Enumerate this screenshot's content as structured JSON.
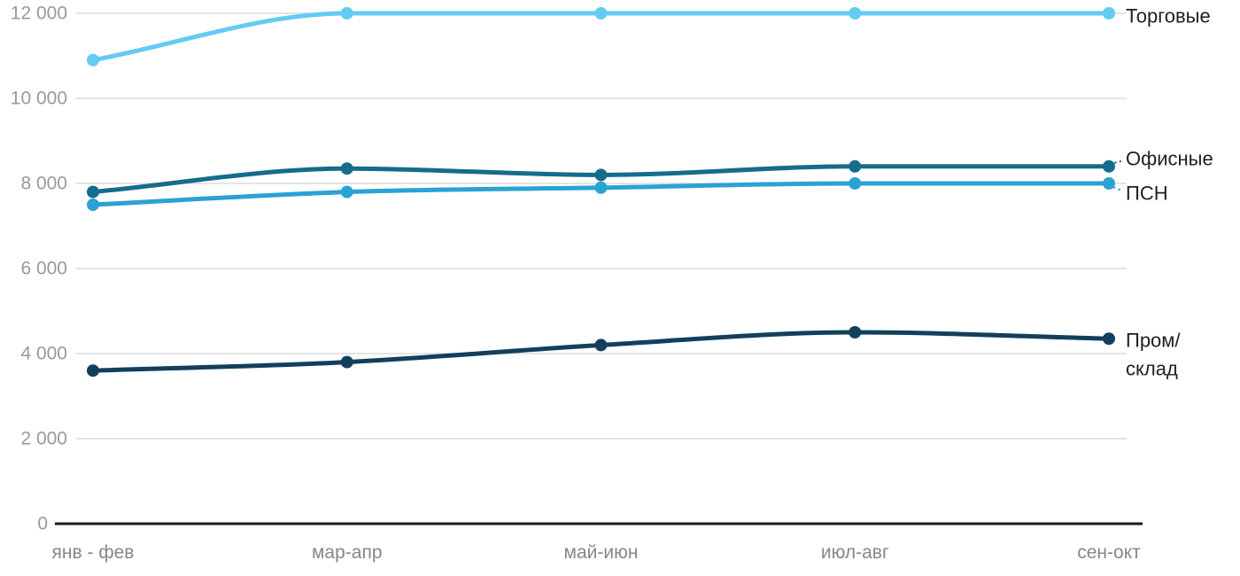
{
  "chart_data": {
    "type": "line",
    "title": "",
    "xlabel": "",
    "ylabel": "",
    "categories": [
      "янв - фев",
      "мар-апр",
      "май-июн",
      "июл-авг",
      "сен-окт"
    ],
    "ylim": [
      0,
      12000
    ],
    "y_ticks": [
      {
        "value": 0,
        "label": "0"
      },
      {
        "value": 2000,
        "label": "2 000"
      },
      {
        "value": 4000,
        "label": "4 000"
      },
      {
        "value": 6000,
        "label": "6 000"
      },
      {
        "value": 8000,
        "label": "8 000"
      },
      {
        "value": 10000,
        "label": "10 000"
      },
      {
        "value": 12000,
        "label": "12 000"
      }
    ],
    "grid": "horizontal",
    "legend_position": "direct-labels-right",
    "series": [
      {
        "name": "Торговые",
        "label_lines": [
          "Торговые"
        ],
        "color": "#63CBF4",
        "values": [
          10900,
          12000,
          12000,
          12000,
          12000
        ]
      },
      {
        "name": "Офисные",
        "label_lines": [
          "Офисные"
        ],
        "color": "#156C8C",
        "values": [
          7800,
          8350,
          8200,
          8400,
          8400
        ]
      },
      {
        "name": "ПСН",
        "label_lines": [
          "ПСН"
        ],
        "color": "#29A3D3",
        "values": [
          7500,
          7800,
          7900,
          8000,
          8000
        ]
      },
      {
        "name": "Пром/склад",
        "label_lines": [
          "Пром/",
          "склад"
        ],
        "color": "#123F5E",
        "values": [
          3600,
          3800,
          4200,
          4500,
          4350
        ]
      }
    ]
  },
  "colors": {
    "grid": "#E0E0E0",
    "axis": "#1B1B1B",
    "y_tick_text": "#999999",
    "x_tick_text": "#878787",
    "series_label_text": "#1F1F1F",
    "background": "#FFFFFF"
  }
}
